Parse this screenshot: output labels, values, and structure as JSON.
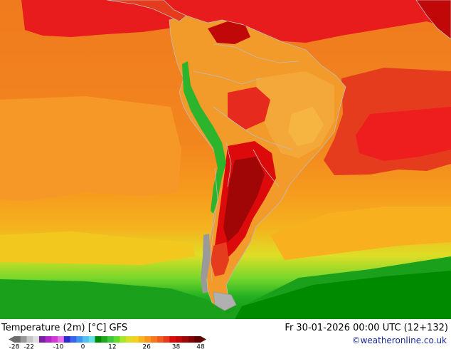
{
  "map": {
    "title": "Temperature (2m) [°C] GFS",
    "datetime": "Fr 30-01-2026 00:00 UTC (12+132)",
    "credit": "©weatheronline.co.uk",
    "legend": {
      "tick_labels": [
        "-28",
        "-22",
        "-10",
        "0",
        "12",
        "26",
        "38",
        "48"
      ],
      "colors": [
        "#6e6e6e",
        "#9a9a9a",
        "#c6c6c6",
        "#e0e0e0",
        "#7c1fa0",
        "#b027c8",
        "#d23ad8",
        "#e66ee8",
        "#2a2ad0",
        "#3c64ee",
        "#3c96f0",
        "#52c0f0",
        "#63e0e6",
        "#008a00",
        "#1fa81f",
        "#3cc83c",
        "#62dc2c",
        "#a8e628",
        "#dede26",
        "#f2d21e",
        "#f6b41e",
        "#f8961e",
        "#f6781e",
        "#f05a1e",
        "#e63c1e",
        "#dc0a0a",
        "#c00808",
        "#a00606",
        "#800404",
        "#600202"
      ]
    }
  }
}
